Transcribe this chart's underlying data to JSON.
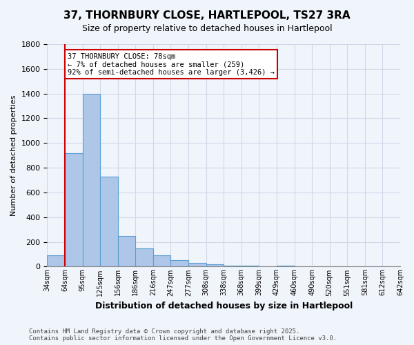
{
  "title": "37, THORNBURY CLOSE, HARTLEPOOL, TS27 3RA",
  "subtitle": "Size of property relative to detached houses in Hartlepool",
  "xlabel": "Distribution of detached houses by size in Hartlepool",
  "ylabel": "Number of detached properties",
  "bar_values": [
    90,
    920,
    1400,
    730,
    250,
    150,
    90,
    55,
    30,
    20,
    10,
    5,
    0,
    10,
    0,
    0,
    0,
    0,
    0,
    0
  ],
  "bin_labels": [
    "34sqm",
    "64sqm",
    "95sqm",
    "125sqm",
    "156sqm",
    "186sqm",
    "216sqm",
    "247sqm",
    "277sqm",
    "308sqm",
    "338sqm",
    "368sqm",
    "399sqm",
    "429sqm",
    "460sqm",
    "490sqm",
    "520sqm",
    "551sqm",
    "581sqm",
    "612sqm",
    "642sqm"
  ],
  "bar_color": "#aec6e8",
  "bar_edge_color": "#5a9fd4",
  "red_line_x": 1,
  "annotation_text": "37 THORNBURY CLOSE: 78sqm\n← 7% of detached houses are smaller (259)\n92% of semi-detached houses are larger (3,426) →",
  "annotation_box_color": "#ffffff",
  "annotation_edge_color": "#cc0000",
  "ylim": [
    0,
    1800
  ],
  "yticks": [
    0,
    200,
    400,
    600,
    800,
    1000,
    1200,
    1400,
    1600,
    1800
  ],
  "grid_color": "#d0d8e8",
  "footer_text": "Contains HM Land Registry data © Crown copyright and database right 2025.\nContains public sector information licensed under the Open Government Licence v3.0.",
  "background_color": "#f0f4fb"
}
